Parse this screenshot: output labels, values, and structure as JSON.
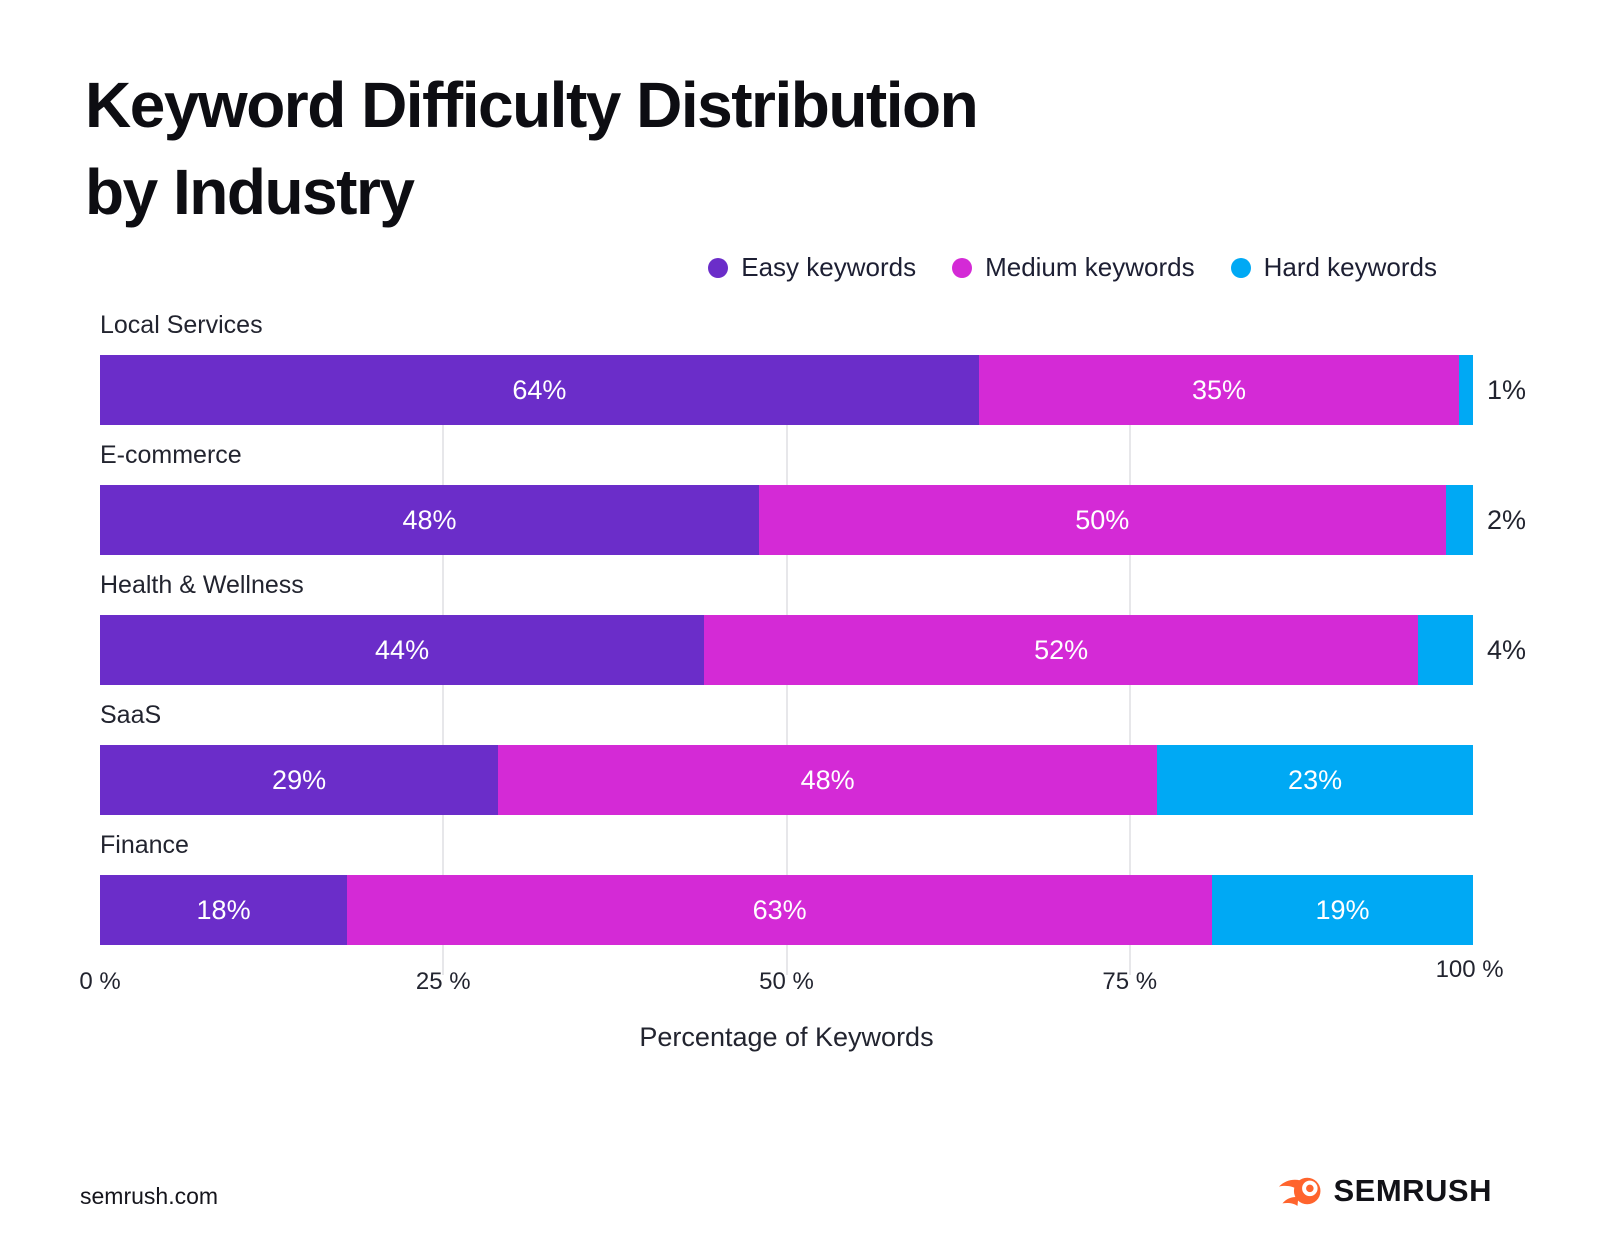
{
  "page": {
    "title_lines": [
      "Keyword Difficulty Distribution",
      "by Industry"
    ],
    "footer": {
      "site": "semrush.com",
      "brand": "SEMRUSH"
    }
  },
  "colors": {
    "easy": "#6B2DC9",
    "medium": "#D42AD6",
    "hard": "#00A9F4",
    "brand_orange": "#FF642D",
    "text_dark": "#22242f",
    "grid": "#e7e7ea"
  },
  "chart_data": {
    "type": "bar",
    "orientation": "horizontal",
    "stacked": true,
    "unit": "%",
    "title": "Keyword Difficulty Distribution by Industry",
    "categories": [
      "Local Services",
      "E-commerce",
      "Health & Wellness",
      "SaaS",
      "Finance"
    ],
    "series": [
      {
        "name": "Easy keywords",
        "color": "#6B2DC9",
        "values": [
          64,
          48,
          44,
          29,
          18
        ]
      },
      {
        "name": "Medium keywords",
        "color": "#D42AD6",
        "values": [
          35,
          50,
          52,
          48,
          63
        ]
      },
      {
        "name": "Hard keywords",
        "color": "#00A9F4",
        "values": [
          1,
          2,
          4,
          23,
          19
        ]
      }
    ],
    "xlabel": "Percentage of Keywords",
    "x_ticks": [
      "0 %",
      "25 %",
      "50 %",
      "75 %",
      "100 %"
    ],
    "x_tick_positions": [
      0,
      25,
      50,
      75,
      100
    ],
    "xlim": [
      0,
      100
    ],
    "grid_ticks": [
      25,
      50,
      75
    ],
    "legend_position": "top-right",
    "value_label_format": "{value}%",
    "outside_label_threshold": 10
  }
}
